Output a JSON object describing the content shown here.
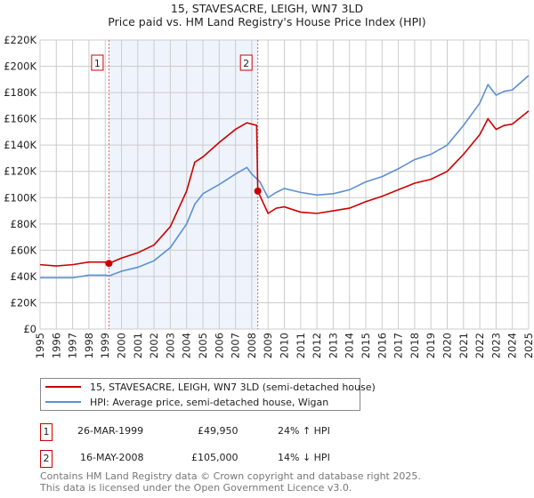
{
  "title": "15, STAVESACRE, LEIGH, WN7 3LD",
  "subtitle": "Price paid vs. HM Land Registry's House Price Index (HPI)",
  "chart_data": {
    "type": "line",
    "title": "15, STAVESACRE, LEIGH, WN7 3LD — Price paid vs. HM Land Registry's House Price Index (HPI)",
    "xlim": [
      1995,
      2025
    ],
    "ylim": [
      0,
      220000
    ],
    "x_ticks": [
      "1995",
      "1996",
      "1997",
      "1998",
      "1999",
      "2000",
      "2001",
      "2002",
      "2003",
      "2004",
      "2005",
      "2006",
      "2007",
      "2008",
      "2009",
      "2010",
      "2011",
      "2012",
      "2013",
      "2014",
      "2015",
      "2016",
      "2017",
      "2018",
      "2019",
      "2020",
      "2021",
      "2022",
      "2023",
      "2024",
      "2025"
    ],
    "y_ticks": [
      "£0",
      "£20K",
      "£40K",
      "£60K",
      "£80K",
      "£100K",
      "£120K",
      "£140K",
      "£160K",
      "£180K",
      "£200K",
      "£220K"
    ],
    "grid": true,
    "series": [
      {
        "name": "15, STAVESACRE, LEIGH, WN7 3LD (semi-detached house)",
        "color": "#cc0000",
        "x": [
          1995,
          1996,
          1997,
          1998,
          1999,
          1999.23,
          2000,
          2001,
          2002,
          2003,
          2004,
          2004.5,
          2005,
          2006,
          2007,
          2007.7,
          2008.3,
          2008.37,
          2009,
          2009.5,
          2010,
          2011,
          2012,
          2013,
          2014,
          2015,
          2016,
          2017,
          2018,
          2019,
          2020,
          2021,
          2022,
          2022.5,
          2023,
          2023.5,
          2024,
          2025
        ],
        "y": [
          49000,
          48000,
          49000,
          51000,
          51000,
          49950,
          54000,
          58000,
          64000,
          78000,
          105000,
          127000,
          131000,
          142000,
          152000,
          157000,
          155000,
          105000,
          88000,
          92000,
          93000,
          89000,
          88000,
          90000,
          92000,
          97000,
          101000,
          106000,
          111000,
          114000,
          120000,
          133000,
          148000,
          160000,
          152000,
          155000,
          156000,
          166000
        ]
      },
      {
        "name": "HPI: Average price, semi-detached house, Wigan",
        "color": "#5b8fd4",
        "x": [
          1995,
          1996,
          1997,
          1998,
          1999,
          1999.25,
          2000,
          2001,
          2002,
          2003,
          2004,
          2004.5,
          2005,
          2006,
          2007,
          2007.7,
          2008,
          2008.5,
          2009,
          2009.5,
          2010,
          2011,
          2012,
          2013,
          2014,
          2015,
          2016,
          2017,
          2018,
          2019,
          2020,
          2021,
          2022,
          2022.5,
          2023,
          2023.5,
          2024,
          2025
        ],
        "y": [
          39000,
          39000,
          39000,
          41000,
          41000,
          40500,
          44000,
          47000,
          52000,
          62000,
          80000,
          95000,
          103000,
          110000,
          118000,
          123000,
          118000,
          112000,
          100000,
          104000,
          107000,
          104000,
          102000,
          103000,
          106000,
          112000,
          116000,
          122000,
          129000,
          133000,
          140000,
          155000,
          172000,
          186000,
          178000,
          181000,
          182000,
          193000
        ]
      }
    ],
    "sales": [
      {
        "label": "1",
        "date": "26-MAR-1999",
        "x": 1999.23,
        "price": "£49,950",
        "value": 49950,
        "hpi": "24% ↑ HPI"
      },
      {
        "label": "2",
        "date": "16-MAY-2008",
        "x": 2008.37,
        "price": "£105,000",
        "value": 105000,
        "hpi": "14% ↓ HPI"
      }
    ],
    "legend_placement": "below"
  },
  "footer": [
    "Contains HM Land Registry data © Crown copyright and database right 2025.",
    "This data is licensed under the Open Government Licence v3.0."
  ]
}
